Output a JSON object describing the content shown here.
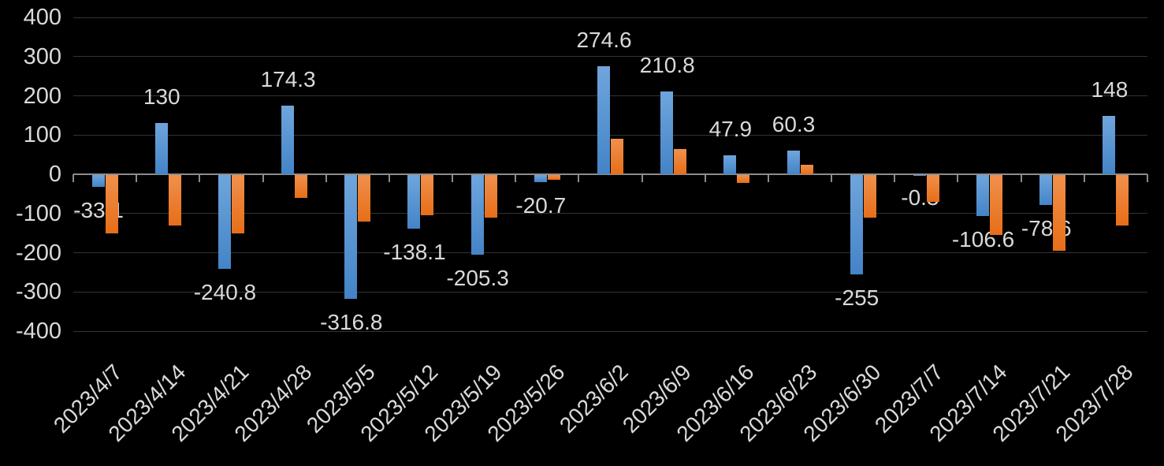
{
  "chart_data": {
    "type": "bar",
    "title": "",
    "xlabel": "",
    "ylabel": "",
    "categories": [
      "2023/4/7",
      "2023/4/14",
      "2023/4/21",
      "2023/4/28",
      "2023/5/5",
      "2023/5/12",
      "2023/5/19",
      "2023/5/26",
      "2023/6/2",
      "2023/6/9",
      "2023/6/16",
      "2023/6/23",
      "2023/6/30",
      "2023/7/7",
      "2023/7/14",
      "2023/7/21",
      "2023/7/28"
    ],
    "series": [
      {
        "name": "blue-series",
        "values": [
          -33.1,
          130,
          -240.8,
          174.3,
          -316.8,
          -138.1,
          -205.3,
          -20.7,
          274.6,
          210.8,
          47.9,
          60.3,
          -255,
          -0.3,
          -106.6,
          -78.6,
          148
        ],
        "data_labels": [
          "-33.1",
          "130",
          "-240.8",
          "174.3",
          "-316.8",
          "-138.1",
          "-205.3",
          "-20.7",
          "274.6",
          "210.8",
          "47.9",
          "60.3",
          "-255",
          "-0.3",
          "-106.6",
          "-78.6",
          "148"
        ]
      },
      {
        "name": "orange-series",
        "values": [
          -150,
          -130,
          -150,
          -60,
          -120,
          -105,
          -110,
          -15,
          90,
          65,
          -22,
          25,
          -110,
          -70,
          -155,
          -195,
          -130
        ],
        "data_labels": null
      }
    ],
    "ylim": [
      -400,
      400
    ],
    "y_tick_labels": [
      "400",
      "300",
      "200",
      "100",
      "0",
      "-100",
      "-200",
      "-300",
      "-400"
    ],
    "grid": true,
    "legend": false
  },
  "colors": {
    "background": "#000000",
    "text": "#D9D9D9",
    "gridline": "#333333",
    "axis_line": "#8C8C8C",
    "blue_top": "#6FA5DC",
    "blue_bottom": "#4384C7",
    "orange_top": "#F0904C",
    "orange_bottom": "#E76E18"
  }
}
